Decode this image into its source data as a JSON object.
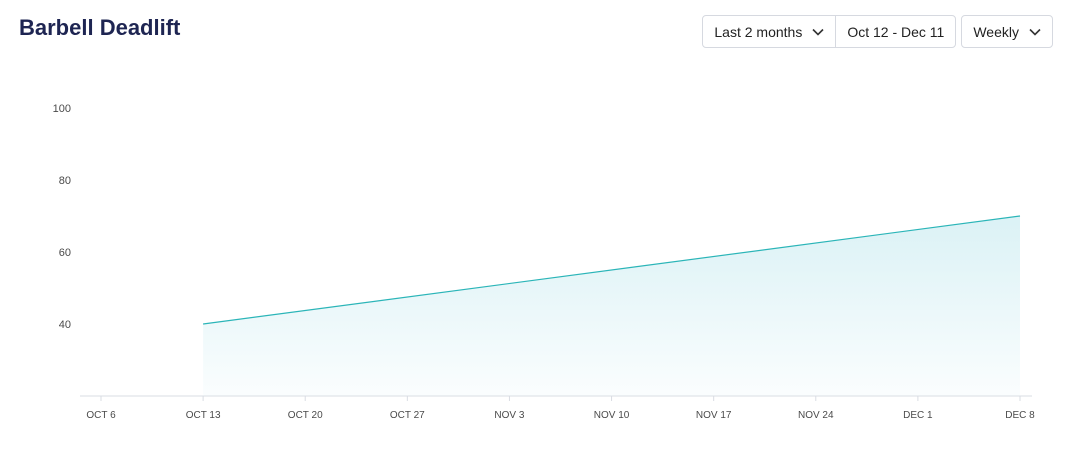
{
  "header": {
    "title": "Barbell Deadlift",
    "range_label": "Last 2 months",
    "date_range": "Oct 12 - Dec 11",
    "interval_label": "Weekly"
  },
  "colors": {
    "line": "#2bb5b8",
    "fill": "#d9f1f5",
    "axis": "#d9dce3",
    "tick_text": "#4a4a4a"
  },
  "chart_data": {
    "type": "area",
    "title": "Barbell Deadlift",
    "x_ticks": [
      "OCT 6",
      "OCT 13",
      "OCT 20",
      "OCT 27",
      "NOV 3",
      "NOV 10",
      "NOV 17",
      "NOV 24",
      "DEC 1",
      "DEC 8"
    ],
    "y_ticks": [
      40,
      60,
      80,
      100
    ],
    "ylim": [
      20,
      100
    ],
    "grid": false,
    "series": [
      {
        "points": [
          {
            "x": "OCT 13",
            "y": 40
          },
          {
            "x": "DEC 8",
            "y": 70
          }
        ]
      }
    ]
  }
}
